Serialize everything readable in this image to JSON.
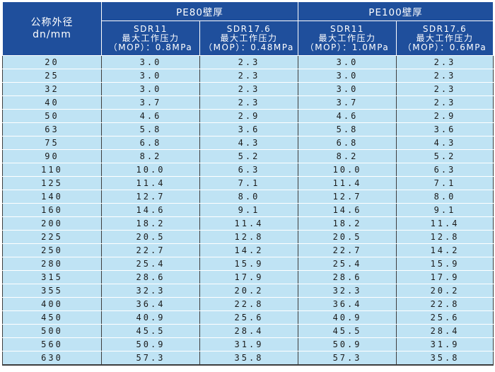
{
  "header": {
    "corner_line1": "公称外径",
    "corner_line2": "dn/mm",
    "groups": [
      "PE80壁厚",
      "PE100壁厚"
    ],
    "subcolumns": [
      {
        "sdr": "SDR11",
        "label": "最大工作压力",
        "mop": "（MOP）：0.8MPa"
      },
      {
        "sdr": "SDR17.6",
        "label": "最大工作压力",
        "mop": "（MOP）：0.48MPa"
      },
      {
        "sdr": "SDR11",
        "label": "最大工作压力",
        "mop": "（MOP）：1.0MPa"
      },
      {
        "sdr": "SDR17.6",
        "label": "最大工作压力",
        "mop": "（MOP）：0.6MPa"
      }
    ]
  },
  "rows": [
    [
      "20",
      "3.0",
      "2.3",
      "3.0",
      "2.3"
    ],
    [
      "25",
      "3.0",
      "2.3",
      "3.0",
      "2.3"
    ],
    [
      "32",
      "3.0",
      "2.3",
      "3.0",
      "2.3"
    ],
    [
      "40",
      "3.7",
      "2.3",
      "3.7",
      "2.3"
    ],
    [
      "50",
      "4.6",
      "2.9",
      "4.6",
      "2.9"
    ],
    [
      "63",
      "5.8",
      "3.6",
      "5.8",
      "3.6"
    ],
    [
      "75",
      "6.8",
      "4.3",
      "6.8",
      "4.3"
    ],
    [
      "90",
      "8.2",
      "5.2",
      "8.2",
      "5.2"
    ],
    [
      "110",
      "10.0",
      "6.3",
      "10.0",
      "6.3"
    ],
    [
      "125",
      "11.4",
      "7.1",
      "11.4",
      "7.1"
    ],
    [
      "140",
      "12.7",
      "8.0",
      "12.7",
      "8.0"
    ],
    [
      "160",
      "14.6",
      "9.1",
      "14.6",
      "9.1"
    ],
    [
      "200",
      "18.2",
      "11.4",
      "18.2",
      "11.4"
    ],
    [
      "225",
      "20.5",
      "12.8",
      "20.5",
      "12.8"
    ],
    [
      "250",
      "22.7",
      "14.2",
      "22.7",
      "14.2"
    ],
    [
      "280",
      "25.4",
      "15.9",
      "25.4",
      "15.9"
    ],
    [
      "315",
      "28.6",
      "17.9",
      "28.6",
      "17.9"
    ],
    [
      "355",
      "32.3",
      "20.2",
      "32.3",
      "20.2"
    ],
    [
      "400",
      "36.4",
      "22.8",
      "36.4",
      "22.8"
    ],
    [
      "450",
      "40.9",
      "25.6",
      "40.9",
      "25.6"
    ],
    [
      "500",
      "45.5",
      "28.4",
      "45.5",
      "28.4"
    ],
    [
      "560",
      "50.9",
      "31.9",
      "50.9",
      "31.9"
    ],
    [
      "630",
      "57.3",
      "35.8",
      "57.3",
      "35.8"
    ]
  ],
  "colors": {
    "header_bg": "#1f4f9c",
    "header_text": "#ffffff",
    "cell_bg": "#bfe3f4",
    "cell_text": "#1a1a1a"
  }
}
